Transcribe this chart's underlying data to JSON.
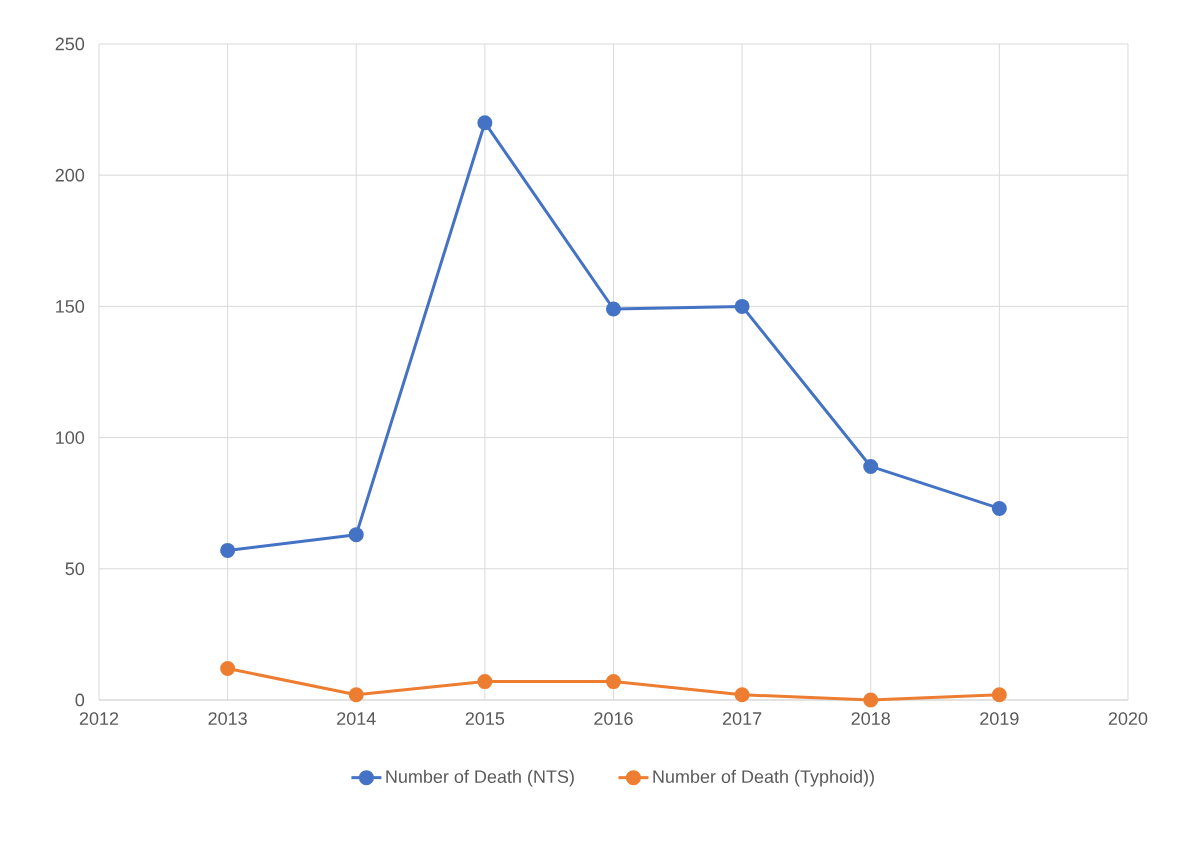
{
  "chart_data": {
    "type": "line",
    "x": [
      2013,
      2014,
      2015,
      2016,
      2017,
      2018,
      2019
    ],
    "series": [
      {
        "name": "Number of Death (NTS)",
        "color": "#4472c4",
        "values": [
          57,
          63,
          220,
          149,
          150,
          89,
          73
        ]
      },
      {
        "name": "Number of Death (Typhoid))",
        "color": "#ed7d31",
        "values": [
          12,
          2,
          7,
          7,
          2,
          0,
          2
        ]
      }
    ],
    "xlim": [
      2012,
      2020
    ],
    "xticks": [
      2012,
      2013,
      2014,
      2015,
      2016,
      2017,
      2018,
      2019,
      2020
    ],
    "ylim": [
      0,
      250
    ],
    "yticks": [
      0,
      50,
      100,
      150,
      200,
      250
    ],
    "grid": true,
    "legend": "bottom",
    "marker": "circle",
    "line_style": "solid"
  }
}
